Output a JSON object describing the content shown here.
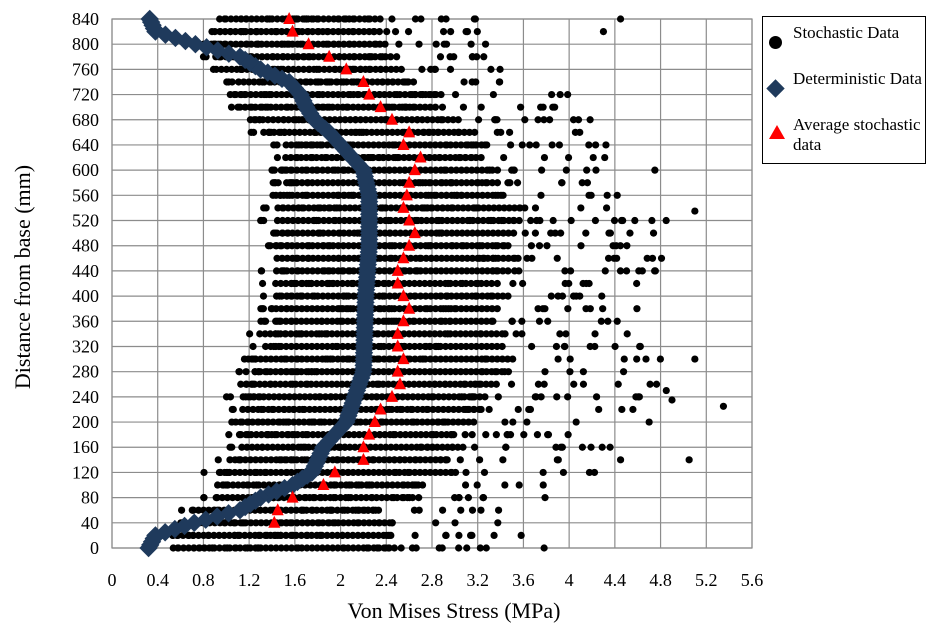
{
  "chart_data": {
    "type": "scatter",
    "xlabel": "Von Mises Stress (MPa)",
    "ylabel": "Distance from base (mm)",
    "xlim": [
      0,
      5.6
    ],
    "ylim": [
      0,
      840
    ],
    "xticks": [
      "0",
      "0.4",
      "0.8",
      "1.2",
      "1.6",
      "2",
      "2.4",
      "2.8",
      "3.2",
      "3.6",
      "4",
      "4.4",
      "4.8",
      "5.2",
      "5.6"
    ],
    "yticks": [
      "0",
      "40",
      "80",
      "120",
      "160",
      "200",
      "240",
      "280",
      "320",
      "360",
      "400",
      "440",
      "480",
      "520",
      "560",
      "600",
      "640",
      "680",
      "720",
      "760",
      "800",
      "840"
    ],
    "grid": true,
    "legend_position": "right-top",
    "series": [
      {
        "name": "Stochastic Data",
        "marker": "circle",
        "color": "#000000",
        "levels": [
          0,
          20,
          40,
          60,
          80,
          100,
          120,
          140,
          160,
          180,
          200,
          220,
          240,
          260,
          280,
          300,
          320,
          340,
          360,
          380,
          400,
          420,
          440,
          460,
          480,
          500,
          520,
          540,
          560,
          580,
          600,
          620,
          640,
          660,
          680,
          700,
          720,
          740,
          760,
          780,
          800,
          820,
          840
        ],
        "ranges": [
          [
            0.4,
            3.8
          ],
          [
            0.4,
            3.7
          ],
          [
            0.6,
            3.6
          ],
          [
            0.6,
            3.4
          ],
          [
            0.8,
            3.8
          ],
          [
            0.8,
            3.9
          ],
          [
            0.8,
            4.3
          ],
          [
            0.9,
            4.2
          ],
          [
            1.0,
            4.4
          ],
          [
            1.0,
            4.2
          ],
          [
            1.0,
            4.5
          ],
          [
            1.0,
            4.6
          ],
          [
            1.0,
            4.7
          ],
          [
            1.1,
            4.8
          ],
          [
            1.1,
            4.9
          ],
          [
            1.1,
            5.0
          ],
          [
            1.2,
            4.8
          ],
          [
            1.2,
            4.7
          ],
          [
            1.3,
            4.6
          ],
          [
            1.3,
            4.7
          ],
          [
            1.3,
            4.8
          ],
          [
            1.3,
            4.6
          ],
          [
            1.3,
            4.8
          ],
          [
            1.3,
            4.9
          ],
          [
            1.3,
            4.8
          ],
          [
            1.3,
            4.9
          ],
          [
            1.3,
            5.0
          ],
          [
            1.3,
            5.1
          ],
          [
            1.4,
            4.7
          ],
          [
            1.4,
            4.6
          ],
          [
            1.4,
            4.6
          ],
          [
            1.4,
            4.4
          ],
          [
            1.4,
            4.5
          ],
          [
            1.2,
            4.4
          ],
          [
            1.2,
            4.2
          ],
          [
            1.0,
            4.0
          ],
          [
            1.0,
            4.1
          ],
          [
            1.0,
            3.7
          ],
          [
            0.8,
            3.6
          ],
          [
            0.8,
            3.5
          ],
          [
            0.8,
            3.4
          ],
          [
            0.8,
            3.3
          ],
          [
            0.9,
            3.3
          ]
        ],
        "outliers": [
          [
            5.35,
            225
          ],
          [
            5.1,
            300
          ],
          [
            5.05,
            140
          ],
          [
            5.1,
            535
          ],
          [
            4.45,
            840
          ],
          [
            4.3,
            820
          ],
          [
            4.7,
            200
          ],
          [
            4.85,
            250
          ],
          [
            4.45,
            140
          ],
          [
            4.75,
            600
          ],
          [
            4.9,
            235
          ]
        ]
      },
      {
        "name": "Deterministic Data",
        "marker": "diamond",
        "color": "#1f3a5c",
        "x": [
          0.33,
          0.38,
          0.73,
          1.12,
          1.3,
          1.55,
          1.65,
          1.7,
          1.77,
          1.9,
          2.0,
          2.1,
          2.2,
          2.25,
          2.25,
          2.22,
          2.2,
          2.05,
          1.85,
          1.75,
          1.58,
          1.3,
          1.12,
          0.72,
          0.38,
          0.32
        ],
        "y": [
          840,
          820,
          800,
          780,
          760,
          740,
          720,
          700,
          680,
          660,
          640,
          620,
          600,
          560,
          480,
          400,
          280,
          200,
          160,
          120,
          100,
          80,
          60,
          40,
          20,
          0
        ]
      },
      {
        "name": "Average stochastic data",
        "marker": "triangle",
        "color": "#ff0000",
        "x": [
          1.55,
          1.58,
          1.72,
          1.9,
          2.05,
          2.2,
          2.25,
          2.35,
          2.45,
          2.6,
          2.55,
          2.7,
          2.65,
          2.6,
          2.58,
          2.55,
          2.6,
          2.65,
          2.6,
          2.55,
          2.5,
          2.5,
          2.55,
          2.6,
          2.55,
          2.5,
          2.5,
          2.55,
          2.5,
          2.52,
          2.45,
          2.35,
          2.3,
          2.25,
          2.2,
          2.2,
          1.95,
          1.85,
          1.58,
          1.45,
          1.42
        ],
        "y": [
          840,
          820,
          800,
          780,
          760,
          740,
          720,
          700,
          680,
          660,
          640,
          620,
          600,
          580,
          560,
          540,
          520,
          500,
          480,
          460,
          440,
          420,
          400,
          380,
          360,
          340,
          320,
          300,
          280,
          260,
          240,
          220,
          200,
          180,
          160,
          140,
          120,
          100,
          80,
          60,
          40
        ]
      }
    ]
  },
  "legend": {
    "items": [
      {
        "label": "Stochastic Data",
        "marker": "circle"
      },
      {
        "label": "Deterministic Data",
        "marker": "diamond"
      },
      {
        "label": "Average stochastic data",
        "marker": "triangle"
      }
    ]
  }
}
